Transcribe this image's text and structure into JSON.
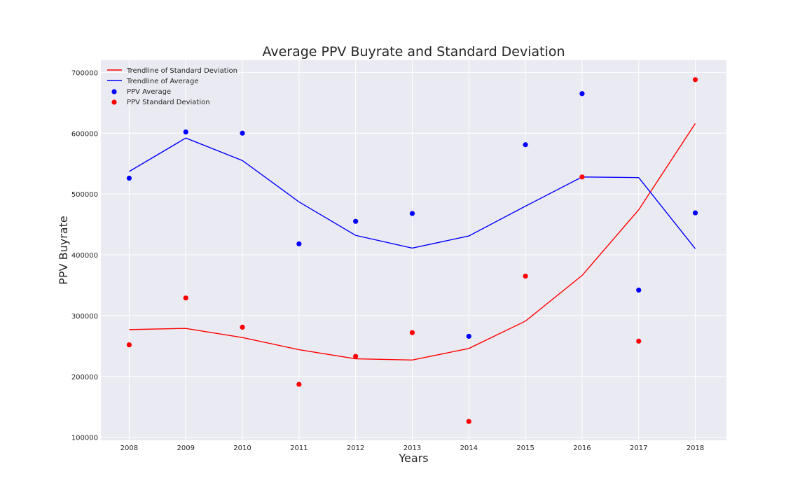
{
  "chart_data": {
    "type": "line",
    "title": "Average PPV Buyrate and Standard Deviation",
    "xlabel": "Years",
    "ylabel": "PPV Buyrate",
    "x": [
      2008,
      2009,
      2010,
      2011,
      2012,
      2013,
      2014,
      2015,
      2016,
      2017,
      2018
    ],
    "xlim": [
      2007.5,
      2018.55
    ],
    "ylim": [
      95000,
      720000
    ],
    "yticks": [
      100000,
      200000,
      300000,
      400000,
      500000,
      600000,
      700000
    ],
    "grid": true,
    "legend": "top-left",
    "series": [
      {
        "name": "Trendline of Standard Deviation",
        "kind": "line",
        "color": "#ff0000",
        "values": [
          277000,
          279000,
          264000,
          244000,
          229000,
          227000,
          246000,
          291000,
          366000,
          474000,
          616000
        ]
      },
      {
        "name": "Trendline of Average",
        "kind": "line",
        "color": "#0000ff",
        "values": [
          537000,
          592000,
          555000,
          487000,
          432000,
          411000,
          431000,
          480000,
          528000,
          527000,
          410000
        ]
      },
      {
        "name": "PPV Average",
        "kind": "scatter",
        "color": "#0000ff",
        "values": [
          526000,
          602000,
          600000,
          418000,
          455000,
          468000,
          266000,
          581000,
          665000,
          342000,
          469000
        ]
      },
      {
        "name": "PPV Standard Deviation",
        "kind": "scatter",
        "color": "#ff0000",
        "values": [
          252000,
          329000,
          281000,
          187000,
          233000,
          272000,
          126000,
          365000,
          528000,
          258000,
          688000
        ]
      }
    ]
  }
}
